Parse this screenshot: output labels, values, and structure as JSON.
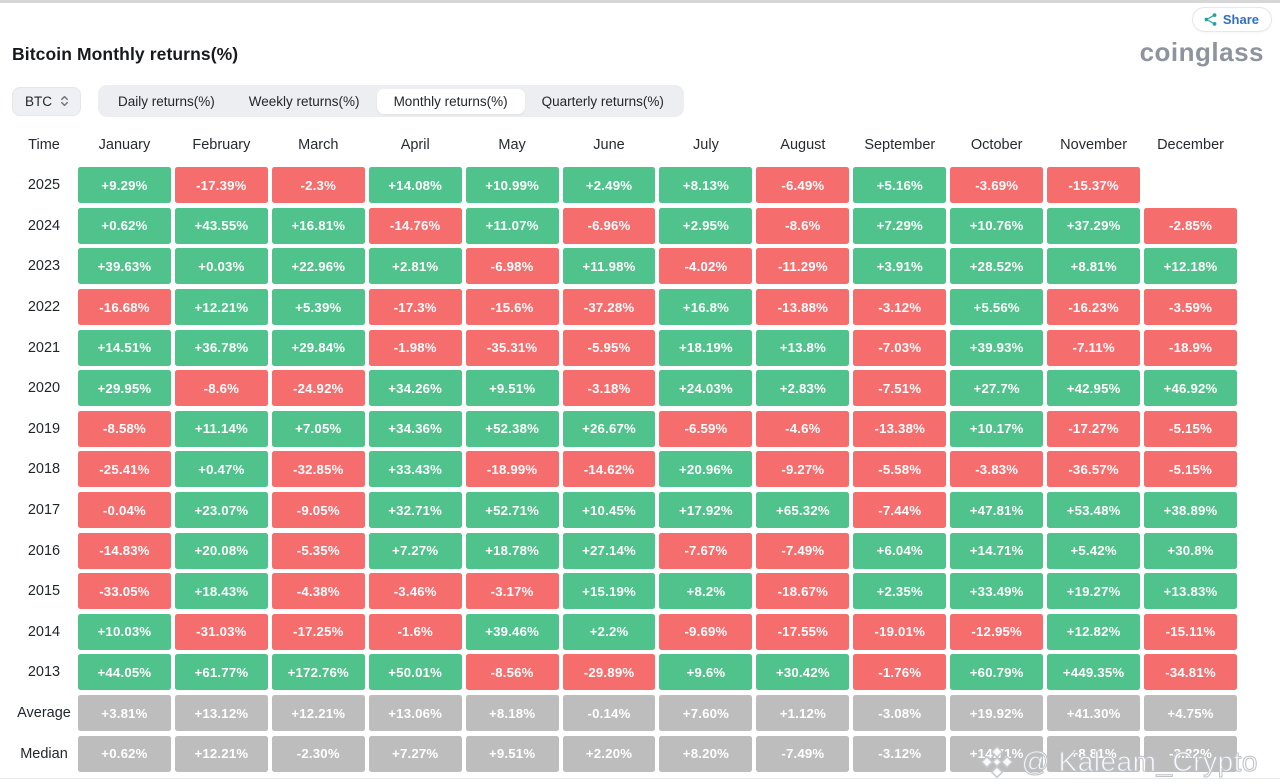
{
  "header": {
    "title": "Bitcoin Monthly returns(%)",
    "logo": "coinglass",
    "share_label": "Share"
  },
  "toolbar": {
    "coin_selector": "BTC",
    "tabs": [
      {
        "label": "Daily returns(%)",
        "active": false
      },
      {
        "label": "Weekly returns(%)",
        "active": false
      },
      {
        "label": "Monthly returns(%)",
        "active": true
      },
      {
        "label": "Quarterly returns(%)",
        "active": false
      }
    ]
  },
  "colors": {
    "positive": "#4fc38b",
    "negative": "#f56d6d",
    "neutral": "#bdbdbd"
  },
  "chart_data": {
    "type": "heatmap",
    "title": "Bitcoin Monthly returns(%)",
    "columns": [
      "Time",
      "January",
      "February",
      "March",
      "April",
      "May",
      "June",
      "July",
      "August",
      "September",
      "October",
      "November",
      "December"
    ],
    "rows": [
      {
        "label": "2025",
        "type": "year",
        "values": [
          "+9.29%",
          "-17.39%",
          "-2.3%",
          "+14.08%",
          "+10.99%",
          "+2.49%",
          "+8.13%",
          "-6.49%",
          "+5.16%",
          "-3.69%",
          "-15.37%",
          null
        ]
      },
      {
        "label": "2024",
        "type": "year",
        "values": [
          "+0.62%",
          "+43.55%",
          "+16.81%",
          "-14.76%",
          "+11.07%",
          "-6.96%",
          "+2.95%",
          "-8.6%",
          "+7.29%",
          "+10.76%",
          "+37.29%",
          "-2.85%"
        ]
      },
      {
        "label": "2023",
        "type": "year",
        "values": [
          "+39.63%",
          "+0.03%",
          "+22.96%",
          "+2.81%",
          "-6.98%",
          "+11.98%",
          "-4.02%",
          "-11.29%",
          "+3.91%",
          "+28.52%",
          "+8.81%",
          "+12.18%"
        ]
      },
      {
        "label": "2022",
        "type": "year",
        "values": [
          "-16.68%",
          "+12.21%",
          "+5.39%",
          "-17.3%",
          "-15.6%",
          "-37.28%",
          "+16.8%",
          "-13.88%",
          "-3.12%",
          "+5.56%",
          "-16.23%",
          "-3.59%"
        ]
      },
      {
        "label": "2021",
        "type": "year",
        "values": [
          "+14.51%",
          "+36.78%",
          "+29.84%",
          "-1.98%",
          "-35.31%",
          "-5.95%",
          "+18.19%",
          "+13.8%",
          "-7.03%",
          "+39.93%",
          "-7.11%",
          "-18.9%"
        ]
      },
      {
        "label": "2020",
        "type": "year",
        "values": [
          "+29.95%",
          "-8.6%",
          "-24.92%",
          "+34.26%",
          "+9.51%",
          "-3.18%",
          "+24.03%",
          "+2.83%",
          "-7.51%",
          "+27.7%",
          "+42.95%",
          "+46.92%"
        ]
      },
      {
        "label": "2019",
        "type": "year",
        "values": [
          "-8.58%",
          "+11.14%",
          "+7.05%",
          "+34.36%",
          "+52.38%",
          "+26.67%",
          "-6.59%",
          "-4.6%",
          "-13.38%",
          "+10.17%",
          "-17.27%",
          "-5.15%"
        ]
      },
      {
        "label": "2018",
        "type": "year",
        "values": [
          "-25.41%",
          "+0.47%",
          "-32.85%",
          "+33.43%",
          "-18.99%",
          "-14.62%",
          "+20.96%",
          "-9.27%",
          "-5.58%",
          "-3.83%",
          "-36.57%",
          "-5.15%"
        ]
      },
      {
        "label": "2017",
        "type": "year",
        "values": [
          "-0.04%",
          "+23.07%",
          "-9.05%",
          "+32.71%",
          "+52.71%",
          "+10.45%",
          "+17.92%",
          "+65.32%",
          "-7.44%",
          "+47.81%",
          "+53.48%",
          "+38.89%"
        ]
      },
      {
        "label": "2016",
        "type": "year",
        "values": [
          "-14.83%",
          "+20.08%",
          "-5.35%",
          "+7.27%",
          "+18.78%",
          "+27.14%",
          "-7.67%",
          "-7.49%",
          "+6.04%",
          "+14.71%",
          "+5.42%",
          "+30.8%"
        ]
      },
      {
        "label": "2015",
        "type": "year",
        "values": [
          "-33.05%",
          "+18.43%",
          "-4.38%",
          "-3.46%",
          "-3.17%",
          "+15.19%",
          "+8.2%",
          "-18.67%",
          "+2.35%",
          "+33.49%",
          "+19.27%",
          "+13.83%"
        ]
      },
      {
        "label": "2014",
        "type": "year",
        "values": [
          "+10.03%",
          "-31.03%",
          "-17.25%",
          "-1.6%",
          "+39.46%",
          "+2.2%",
          "-9.69%",
          "-17.55%",
          "-19.01%",
          "-12.95%",
          "+12.82%",
          "-15.11%"
        ]
      },
      {
        "label": "2013",
        "type": "year",
        "values": [
          "+44.05%",
          "+61.77%",
          "+172.76%",
          "+50.01%",
          "-8.56%",
          "-29.89%",
          "+9.6%",
          "+30.42%",
          "-1.76%",
          "+60.79%",
          "+449.35%",
          "-34.81%"
        ]
      },
      {
        "label": "Average",
        "type": "summary",
        "values": [
          "+3.81%",
          "+13.12%",
          "+12.21%",
          "+13.06%",
          "+8.18%",
          "-0.14%",
          "+7.60%",
          "+1.12%",
          "-3.08%",
          "+19.92%",
          "+41.30%",
          "+4.75%"
        ]
      },
      {
        "label": "Median",
        "type": "summary",
        "values": [
          "+0.62%",
          "+12.21%",
          "-2.30%",
          "+7.27%",
          "+9.51%",
          "+2.20%",
          "+8.20%",
          "-7.49%",
          "-3.12%",
          "+14.71%",
          "+8.81%",
          "-3.22%"
        ]
      }
    ]
  },
  "watermark": {
    "text": "@ Kaleam_Crypto"
  }
}
